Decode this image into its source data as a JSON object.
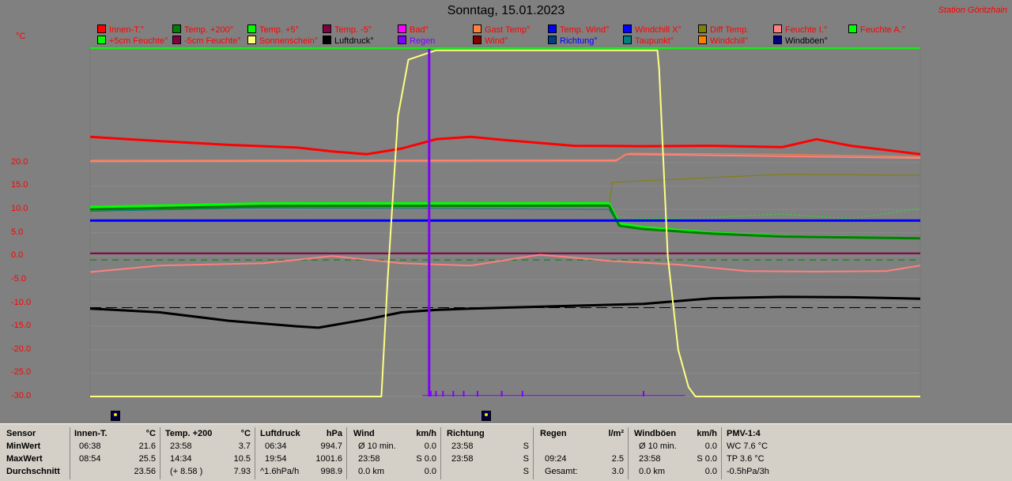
{
  "title": "Sonntag, 15.01.2023",
  "station": "Station Göritzhain",
  "unit": "°C",
  "legend": [
    {
      "label": "Innen-T.°",
      "color": "#ff0000",
      "textColor": "#ff0000"
    },
    {
      "label": "Temp. +200°",
      "color": "#008000",
      "textColor": "#ff0000"
    },
    {
      "label": "Temp. +5°",
      "color": "#00ff00",
      "textColor": "#ff0000"
    },
    {
      "label": "Temp. -5°",
      "color": "#800040",
      "textColor": "#ff0000"
    },
    {
      "label": "Bad°",
      "color": "#ff00ff",
      "textColor": "#ff0000"
    },
    {
      "label": "Gast Temp°",
      "color": "#ff8040",
      "textColor": "#ff0000"
    },
    {
      "label": "Temp. Wind°",
      "color": "#0000ff",
      "textColor": "#ff0000"
    },
    {
      "label": "Windchill X°",
      "color": "#0000ff",
      "textColor": "#ff0000"
    },
    {
      "label": "Diff Temp.",
      "color": "#808000",
      "textColor": "#ff0000"
    },
    {
      "label": "Feuchte I.°",
      "color": "#ff8080",
      "textColor": "#ff0000"
    },
    {
      "label": "Feuchte A.°",
      "color": "#00ff00",
      "textColor": "#ff0000"
    },
    {
      "label": "+5cm Feuchte°",
      "color": "#00ff00",
      "textColor": "#ff0000"
    },
    {
      "label": "-5cm Feuchte°",
      "color": "#800040",
      "textColor": "#ff0000"
    },
    {
      "label": "Sonnenschein°",
      "color": "#ffff80",
      "textColor": "#ff0000"
    },
    {
      "label": "Luftdruck°",
      "color": "#000000",
      "textColor": "#000000"
    },
    {
      "label": "Regen",
      "color": "#8000ff",
      "textColor": "#8000ff"
    },
    {
      "label": "Wind°",
      "color": "#800000",
      "textColor": "#ff0000"
    },
    {
      "label": "Richtung°",
      "color": "#004080",
      "textColor": "#0000ff"
    },
    {
      "label": "Taupunkt°",
      "color": "#008080",
      "textColor": "#ff0000"
    },
    {
      "label": "Windchill°",
      "color": "#ff8000",
      "textColor": "#ff0000"
    },
    {
      "label": "Windböen°",
      "color": "#000080",
      "textColor": "#000000"
    }
  ],
  "chart_data": {
    "type": "line",
    "title": "Sonntag, 15.01.2023",
    "ylabel": "°C",
    "ylim": [
      -30,
      45
    ],
    "yticks": [
      "20.0",
      "15.0",
      "10.0",
      "5.0",
      "0.0",
      "-5.0",
      "-10.0",
      "-15.0",
      "-20.0",
      "-25.0",
      "-30.0"
    ],
    "ytick_values": [
      20,
      15,
      10,
      5,
      0,
      -5,
      -10,
      -15,
      -20,
      -25,
      -30
    ],
    "xlim": [
      0,
      24
    ],
    "grid": true,
    "series": [
      {
        "name": "Innen-T.",
        "color": "#ff0000",
        "width": 3,
        "x": [
          0,
          2,
          4,
          6,
          7,
          8,
          9,
          10,
          11,
          12,
          14,
          16,
          18,
          20,
          21,
          22,
          24
        ],
        "y": [
          25.5,
          24.6,
          23.8,
          23.2,
          22.4,
          21.8,
          23.0,
          25.0,
          25.5,
          24.8,
          23.6,
          23.5,
          23.6,
          23.3,
          25.0,
          23.6,
          21.8
        ]
      },
      {
        "name": "Feuchte I.",
        "color": "#ff8080",
        "width": 2,
        "x": [
          0,
          15.2,
          15.5,
          24
        ],
        "y": [
          20.3,
          20.4,
          21.8,
          21.0
        ]
      },
      {
        "name": "Gast Temp",
        "color": "#ff8040",
        "width": 1,
        "x": [
          0,
          15.2,
          15.6,
          20,
          24
        ],
        "y": [
          20.5,
          20.6,
          22.0,
          21.8,
          21.3
        ]
      },
      {
        "name": "Diff Temp.",
        "color": "#808000",
        "width": 1,
        "x": [
          15.0,
          15.1,
          18,
          20,
          24
        ],
        "y": [
          10.8,
          15.8,
          16.8,
          17.5,
          17.3
        ]
      },
      {
        "name": "+5cm Feuchte",
        "color": "#00ff00",
        "width": 3,
        "x": [
          0,
          5,
          15.0,
          15.3,
          16,
          18,
          20,
          24
        ],
        "y": [
          10.5,
          11.3,
          11.3,
          7.0,
          6.2,
          5.0,
          4.3,
          3.8
        ]
      },
      {
        "name": "Temp. +200",
        "color": "#008000",
        "width": 3,
        "x": [
          0,
          5,
          15.0,
          15.3,
          16,
          18,
          20,
          24
        ],
        "y": [
          10.0,
          10.7,
          10.8,
          6.5,
          5.8,
          4.8,
          4.2,
          3.8
        ]
      },
      {
        "name": "Feuchte A.",
        "color": "#00ff00",
        "width": 1,
        "dash": "2,3",
        "x": [
          15.1,
          16,
          18,
          20,
          22,
          24
        ],
        "y": [
          8.5,
          8.0,
          8.3,
          9.0,
          8.0,
          10.2
        ]
      },
      {
        "name": "Taupunkt",
        "color": "#008080",
        "width": 1,
        "x": [
          0,
          5,
          15.0,
          15.2
        ],
        "y": [
          9.6,
          10.3,
          10.0,
          7.5
        ]
      },
      {
        "name": "Temp. Wind",
        "color": "#0000ff",
        "width": 3,
        "x": [
          0,
          24
        ],
        "y": [
          7.6,
          7.6
        ]
      },
      {
        "name": "Temp. -5",
        "color": "#800040",
        "width": 2,
        "x": [
          0,
          24
        ],
        "y": [
          0.6,
          0.6
        ]
      },
      {
        "name": "Feuchte A. ref",
        "color": "#008000",
        "width": 1,
        "dash": "8,6",
        "x": [
          0,
          24
        ],
        "y": [
          -0.8,
          -0.8
        ]
      },
      {
        "name": "Feuchte I. ref",
        "color": "#ff8080",
        "width": 2,
        "x": [
          0,
          2,
          5,
          7,
          9,
          11,
          13,
          15,
          17,
          19,
          21,
          23,
          24
        ],
        "y": [
          -3.4,
          -2.0,
          -1.5,
          0.0,
          -1.5,
          -2.0,
          0.3,
          -1.0,
          -1.8,
          -3.2,
          -3.3,
          -3.2,
          -2.0
        ]
      },
      {
        "name": "Luftdruck",
        "color": "#000000",
        "width": 3,
        "x": [
          0,
          2,
          4,
          6,
          6.6,
          8,
          9,
          10,
          11,
          12,
          14,
          16,
          18,
          20,
          22,
          24
        ],
        "y": [
          -11.2,
          -12.0,
          -13.8,
          -15.0,
          -15.3,
          -13.5,
          -12.0,
          -11.5,
          -11.2,
          -11.0,
          -10.6,
          -10.2,
          -9.0,
          -8.7,
          -8.8,
          -9.1
        ]
      },
      {
        "name": "Luftdruck ref",
        "color": "#000000",
        "width": 1,
        "dash": "14,6",
        "x": [
          0,
          24
        ],
        "y": [
          -11.0,
          -11.0
        ]
      },
      {
        "name": "Sonnenschein",
        "color": "#ffff80",
        "width": 2,
        "x": [
          0,
          8.42,
          8.6,
          8.9,
          9.2,
          10,
          15.2,
          16.4,
          16.45,
          16.7,
          17.0,
          17.3,
          17.5,
          24
        ],
        "y": [
          -30,
          -30,
          -5,
          30,
          42,
          44,
          44,
          44,
          40,
          0,
          -20,
          -28,
          -30,
          -30
        ]
      },
      {
        "name": "Regen",
        "color": "#8000ff",
        "width": 3,
        "x": [
          9.8,
          9.8
        ],
        "y": [
          -30,
          44.5
        ]
      },
      {
        "name": "Regen Boden",
        "color": "#8000ff",
        "width": 1,
        "x": [
          9.6,
          17.2
        ],
        "y": [
          -29.8,
          -29.8
        ]
      },
      {
        "name": "Feuchte A. oben",
        "color": "#00ff00",
        "width": 2,
        "x": [
          0,
          24
        ],
        "y": [
          44.5,
          44.5
        ]
      }
    ]
  },
  "icons": [
    {
      "name": "sunrise-icon"
    },
    {
      "name": "sunset-icon"
    }
  ],
  "table": [
    {
      "header": {
        "label": "Sensor",
        "unit": ""
      },
      "rows": [
        {
          "time": "MinWert",
          "value": ""
        },
        {
          "time": "MaxWert",
          "value": ""
        },
        {
          "time": "Durchschnitt",
          "value": ""
        }
      ],
      "key": "sensor"
    },
    {
      "header": {
        "label": "Innen-T.",
        "unit": "°C"
      },
      "rows": [
        {
          "time": "06:38",
          "value": "21.6"
        },
        {
          "time": "08:54",
          "value": "25.5"
        },
        {
          "time": "",
          "value": "23.56"
        }
      ],
      "key": "innen"
    },
    {
      "header": {
        "label": "Temp. +200",
        "unit": "°C"
      },
      "rows": [
        {
          "time": "23:58",
          "value": "3.7"
        },
        {
          "time": "14:34",
          "value": "10.5"
        },
        {
          "time": "(+ 8.58 )",
          "value": "7.93"
        }
      ],
      "key": "temp200"
    },
    {
      "header": {
        "label": "Luftdruck",
        "unit": "hPa"
      },
      "rows": [
        {
          "time": "06:34",
          "value": "994.7"
        },
        {
          "time": "19:54",
          "value": "1001.6"
        },
        {
          "time": "^1.6hPa/h",
          "value": "998.9"
        }
      ],
      "key": "druck"
    },
    {
      "header": {
        "label": "Wind",
        "unit": "km/h"
      },
      "rows": [
        {
          "time": "Ø 10 min.",
          "value": "0.0"
        },
        {
          "time": "23:58",
          "value": "S 0.0"
        },
        {
          "time": "0.0 km",
          "value": "0.0"
        }
      ],
      "key": "wind"
    },
    {
      "header": {
        "label": "Richtung",
        "unit": ""
      },
      "rows": [
        {
          "time": "23:58",
          "value": "S"
        },
        {
          "time": "23:58",
          "value": "S"
        },
        {
          "time": "",
          "value": "S"
        }
      ],
      "key": "richtung"
    },
    {
      "header": {
        "label": "Regen",
        "unit": "l/m²"
      },
      "rows": [
        {
          "time": "",
          "value": ""
        },
        {
          "time": "09:24",
          "value": "2.5"
        },
        {
          "time": "Gesamt:",
          "value": "3.0"
        }
      ],
      "key": "regen"
    },
    {
      "header": {
        "label": "Windböen",
        "unit": "km/h"
      },
      "rows": [
        {
          "time": "Ø 10 min.",
          "value": "0.0"
        },
        {
          "time": "23:58",
          "value": "S 0.0"
        },
        {
          "time": "0.0 km",
          "value": "0.0"
        }
      ],
      "key": "boeen"
    },
    {
      "header": {
        "label": "PMV-1:4",
        "unit": ""
      },
      "rows": [
        {
          "time": "WC 7.6 °C",
          "value": ""
        },
        {
          "time": "TP 3.6 °C",
          "value": ""
        },
        {
          "time": "-0.5hPa/3h",
          "value": ""
        }
      ],
      "key": "pmv"
    }
  ]
}
